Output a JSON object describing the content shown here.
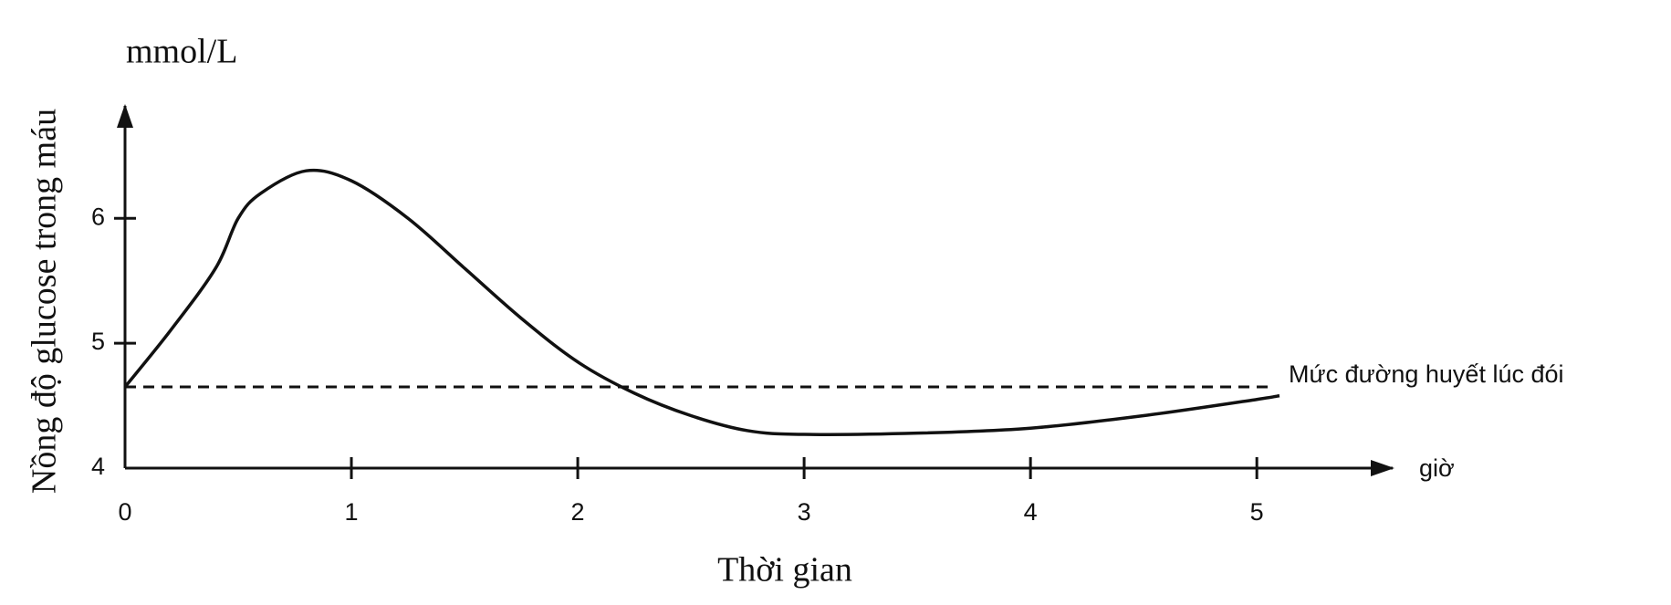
{
  "chart_data": {
    "type": "line",
    "y_unit": "mmol/L",
    "y_label": "Nồng độ glucose trong máu",
    "x_unit": "giờ",
    "x_label": "Thời gian",
    "xlim": [
      0,
      5.6
    ],
    "ylim": [
      4,
      6.9
    ],
    "xticks": [
      0,
      1,
      2,
      3,
      4,
      5
    ],
    "yticks": [
      4,
      5,
      6
    ],
    "x": [
      0,
      0.2,
      0.4,
      0.5,
      0.6,
      0.8,
      1.0,
      1.25,
      1.5,
      1.75,
      2.0,
      2.25,
      2.5,
      2.75,
      3.0,
      3.5,
      4.0,
      4.5,
      5.0,
      5.1
    ],
    "series": [
      {
        "color": "#111111",
        "values": [
          4.65,
          5.1,
          5.6,
          6.0,
          6.2,
          6.38,
          6.3,
          6.0,
          5.6,
          5.2,
          4.85,
          4.6,
          4.42,
          4.3,
          4.27,
          4.28,
          4.32,
          4.42,
          4.55,
          4.58
        ]
      }
    ],
    "reference_line": {
      "value": 4.65,
      "label": "Mức đường huyết lúc đói"
    }
  }
}
